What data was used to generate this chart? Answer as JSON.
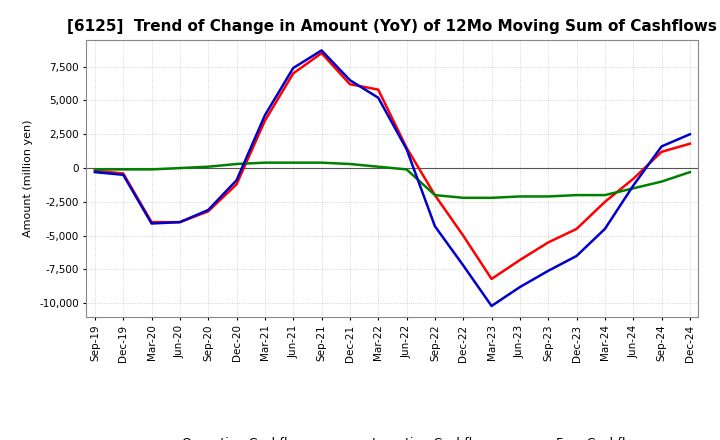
{
  "title": "[6125]  Trend of Change in Amount (YoY) of 12Mo Moving Sum of Cashflows",
  "ylabel": "Amount (million yen)",
  "ylim": [
    -11000,
    9500
  ],
  "yticks": [
    -10000,
    -7500,
    -5000,
    -2500,
    0,
    2500,
    5000,
    7500
  ],
  "background_color": "#ffffff",
  "grid_color": "#c8c8c8",
  "x_labels": [
    "Sep-19",
    "Dec-19",
    "Mar-20",
    "Jun-20",
    "Sep-20",
    "Dec-20",
    "Mar-21",
    "Jun-21",
    "Sep-21",
    "Dec-21",
    "Mar-22",
    "Jun-22",
    "Sep-22",
    "Dec-22",
    "Mar-23",
    "Jun-23",
    "Sep-23",
    "Dec-23",
    "Mar-24",
    "Jun-24",
    "Sep-24",
    "Dec-24"
  ],
  "operating_cashflow": [
    -200,
    -400,
    -4000,
    -4000,
    -3200,
    -1200,
    3500,
    7000,
    8500,
    6200,
    5800,
    1500,
    -2000,
    -5000,
    -8200,
    -6800,
    -5500,
    -4500,
    -2500,
    -800,
    1200,
    1800
  ],
  "investing_cashflow": [
    -100,
    -100,
    -100,
    0,
    100,
    300,
    400,
    400,
    400,
    300,
    100,
    -100,
    -2000,
    -2200,
    -2200,
    -2100,
    -2100,
    -2000,
    -2000,
    -1500,
    -1000,
    -300
  ],
  "free_cashflow": [
    -300,
    -500,
    -4100,
    -4000,
    -3100,
    -900,
    3900,
    7400,
    8700,
    6500,
    5200,
    1400,
    -4300,
    -7200,
    -10200,
    -8800,
    -7600,
    -6500,
    -4500,
    -1300,
    1600,
    2500
  ],
  "operating_color": "#ff0000",
  "investing_color": "#008000",
  "free_color": "#0000cc",
  "line_width": 1.8,
  "title_fontsize": 11,
  "label_fontsize": 8,
  "tick_fontsize": 7.5,
  "legend_fontsize": 9
}
